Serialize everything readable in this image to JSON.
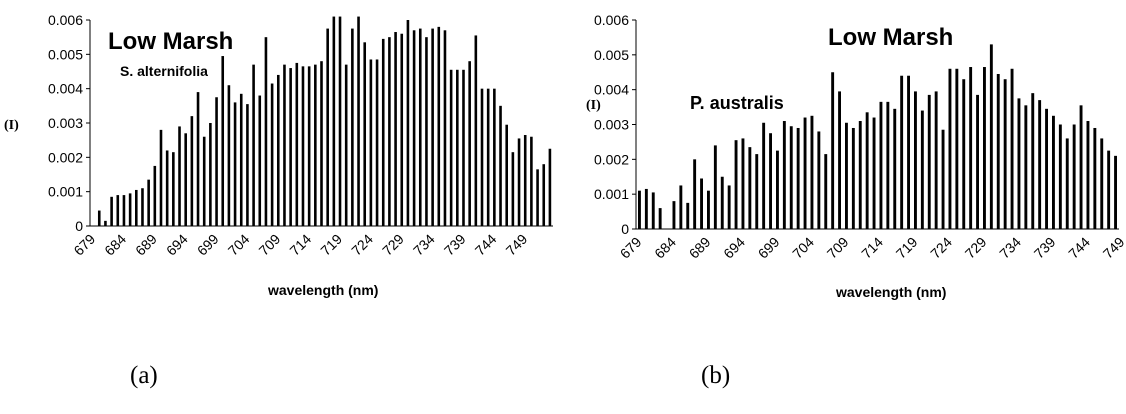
{
  "chart_data": [
    {
      "type": "bar",
      "title": "Low Marsh",
      "subtitle": "S. alternifolia",
      "xlabel": "wavelength (nm)",
      "ylabel": "(I)",
      "ylim": [
        0,
        0.006
      ],
      "yticks": [
        "0",
        "0.001",
        "0.002",
        "0.003",
        "0.004",
        "0.005",
        "0.006"
      ],
      "xticks": [
        "679",
        "684",
        "689",
        "694",
        "699",
        "704",
        "709",
        "714",
        "719",
        "724",
        "729",
        "734",
        "739",
        "744",
        "749"
      ],
      "x_start": 679,
      "grid": false,
      "values": [
        0.0,
        0.00045,
        0.00015,
        0.00085,
        0.0009,
        0.0009,
        0.00095,
        0.00105,
        0.0011,
        0.00135,
        0.00175,
        0.0028,
        0.0022,
        0.00215,
        0.0029,
        0.0027,
        0.0032,
        0.0039,
        0.0026,
        0.003,
        0.00375,
        0.00495,
        0.0041,
        0.0036,
        0.00385,
        0.00355,
        0.0047,
        0.0038,
        0.0055,
        0.00415,
        0.0044,
        0.0047,
        0.0046,
        0.00475,
        0.00465,
        0.00465,
        0.0047,
        0.0048,
        0.00575,
        0.0061,
        0.0061,
        0.0047,
        0.00575,
        0.0061,
        0.00535,
        0.00485,
        0.00485,
        0.00545,
        0.0055,
        0.00565,
        0.0056,
        0.006,
        0.0057,
        0.00575,
        0.0055,
        0.00575,
        0.0058,
        0.0057,
        0.00455,
        0.00455,
        0.00455,
        0.0048,
        0.00555,
        0.004,
        0.004,
        0.004,
        0.0035,
        0.00295,
        0.00215,
        0.00255,
        0.00265,
        0.0026,
        0.00165,
        0.0018,
        0.00225
      ]
    },
    {
      "type": "bar",
      "title": "Low Marsh",
      "subtitle": "P. australis",
      "xlabel": "wavelength (nm)",
      "ylabel": "(I)",
      "ylim": [
        0,
        0.006
      ],
      "yticks": [
        "0",
        "0.001",
        "0.002",
        "0.003",
        "0.004",
        "0.005",
        "0.006"
      ],
      "xticks": [
        "679",
        "684",
        "689",
        "694",
        "699",
        "704",
        "709",
        "714",
        "719",
        "724",
        "729",
        "734",
        "739",
        "744",
        "749"
      ],
      "x_start": 679,
      "grid": false,
      "values": [
        0.0011,
        0.00115,
        0.00105,
        0.0006,
        0.0,
        0.0008,
        0.00125,
        0.00075,
        0.002,
        0.00145,
        0.0011,
        0.0024,
        0.0015,
        0.00125,
        0.00255,
        0.0026,
        0.00235,
        0.00215,
        0.00305,
        0.00275,
        0.00225,
        0.0031,
        0.00295,
        0.0029,
        0.0032,
        0.00325,
        0.0028,
        0.00215,
        0.0045,
        0.00395,
        0.00305,
        0.0029,
        0.0031,
        0.00335,
        0.0032,
        0.00365,
        0.00365,
        0.00345,
        0.0044,
        0.0044,
        0.00395,
        0.0034,
        0.00385,
        0.00395,
        0.00285,
        0.0046,
        0.0046,
        0.0043,
        0.00465,
        0.00385,
        0.00465,
        0.0053,
        0.00445,
        0.0043,
        0.0046,
        0.00375,
        0.00355,
        0.0039,
        0.0037,
        0.00345,
        0.00325,
        0.003,
        0.0026,
        0.003,
        0.00355,
        0.0031,
        0.0029,
        0.0026,
        0.00225,
        0.0021
      ]
    }
  ],
  "captions": {
    "a": "(a)",
    "b": "(b)"
  }
}
